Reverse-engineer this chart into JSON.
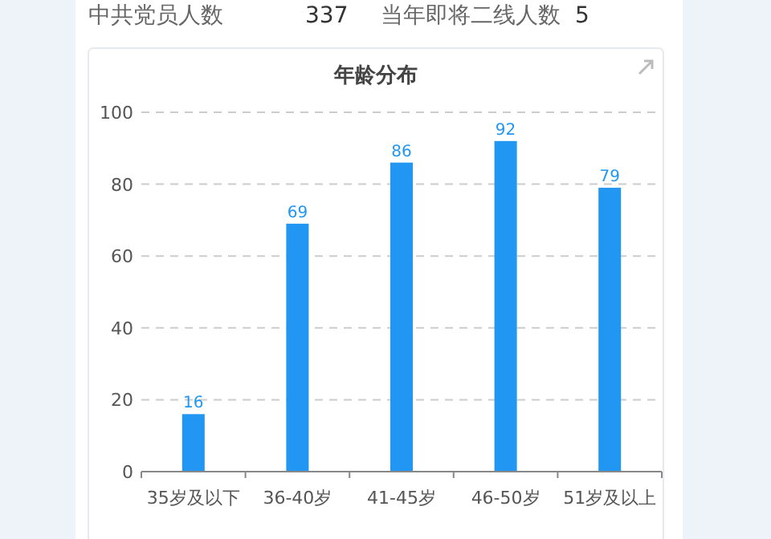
{
  "chart_data": {
    "type": "bar",
    "title": "年龄分布",
    "categories": [
      "35岁及以下",
      "36-40岁",
      "41-45岁",
      "46-50岁",
      "51岁及以上"
    ],
    "values": [
      16,
      69,
      86,
      92,
      79
    ],
    "color": "#2196f3",
    "ylim": [
      0,
      100
    ],
    "yticks": [
      0,
      20,
      40,
      60,
      80,
      100
    ],
    "grid": "y",
    "data_labels": true,
    "annotations": [
      "中共党员人数",
      "337",
      "当年即将二线人数",
      "5"
    ]
  }
}
